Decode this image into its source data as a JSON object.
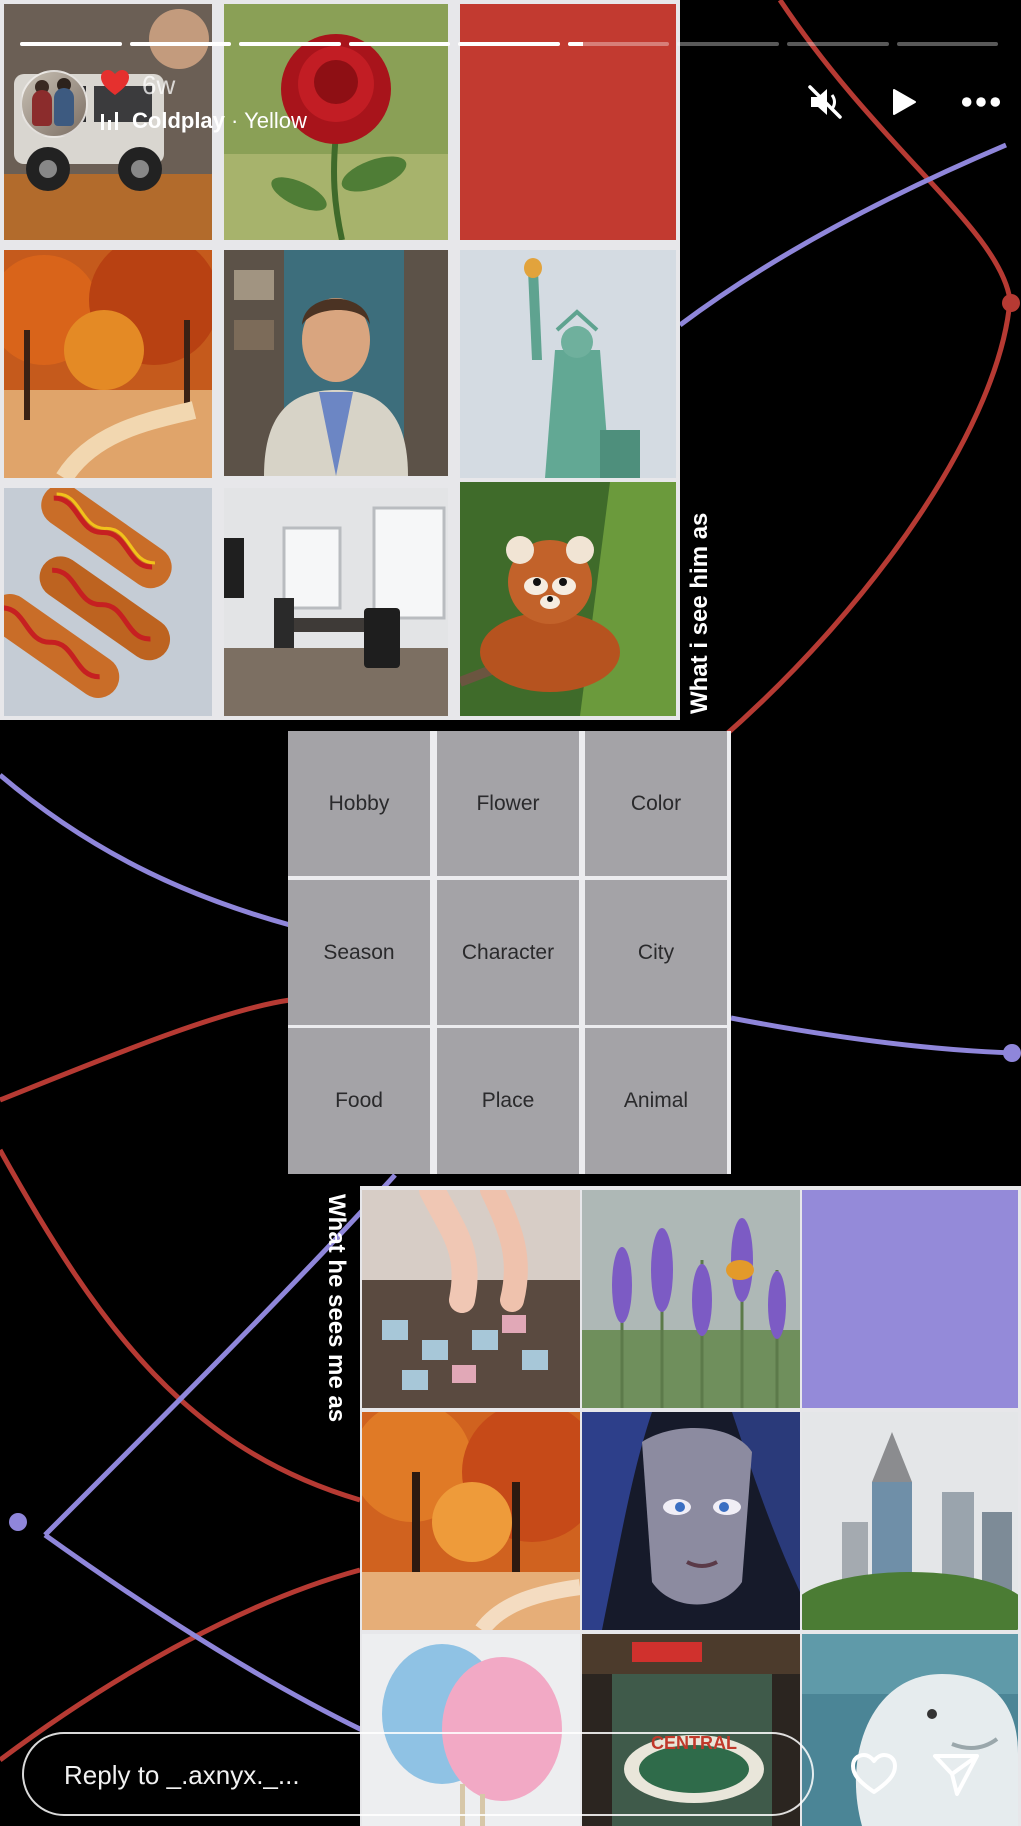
{
  "story": {
    "progress": [
      1,
      1,
      1,
      1,
      1,
      0.15,
      0,
      0,
      0
    ],
    "header": {
      "reaction_emoji": "heart",
      "age": "6w",
      "song_artist": "Coldplay",
      "song_separator": " · ",
      "song_title": "Yellow"
    },
    "top_label": "What i see him as",
    "bottom_label": "What he sees me as",
    "grid": {
      "cells": [
        "Hobby",
        "Flower",
        "Color",
        "Season",
        "Character",
        "City",
        "Food",
        "Place",
        "Animal"
      ]
    },
    "footer": {
      "reply_placeholder": "Reply to _.axnyx._..."
    },
    "colors": {
      "red_line": "#b63a33",
      "purple_line": "#8f86da",
      "top_color_tile": "#c23a30",
      "bottom_color_tile": "#948ad9"
    },
    "icons": {
      "mute": "mute-icon",
      "play": "play-icon",
      "more": "more-icon",
      "like": "heart-icon",
      "share": "send-icon",
      "music": "music-bars-icon"
    }
  }
}
